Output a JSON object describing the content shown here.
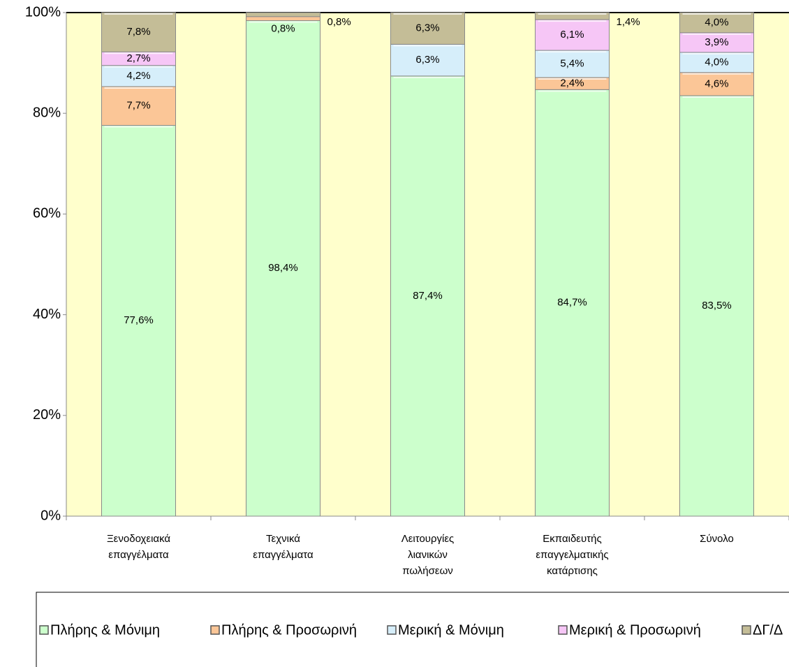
{
  "chart_data": {
    "type": "stacked_bar",
    "categories": [
      [
        "Ξενοδοχειακά",
        "επαγγέλματα"
      ],
      [
        "Τεχνικά",
        "επαγγέλματα"
      ],
      [
        "Λειτουργίες",
        "λιανικών",
        "πωλήσεων"
      ],
      [
        "Εκπαιδευτής",
        "επαγγελματικής",
        "κατάρτισης"
      ],
      [
        "Σύνολο"
      ]
    ],
    "series": [
      {
        "name": "Πλήρης & Μόνιμη",
        "color": "#ccffcc",
        "values": [
          77.6,
          98.4,
          87.4,
          84.7,
          83.5
        ],
        "value_labels": [
          "77,6%",
          "98,4%",
          "87,4%",
          "84,7%",
          "83,5%"
        ]
      },
      {
        "name": "Πλήρης & Προσωρινή",
        "color": "#fbc697",
        "values": [
          7.7,
          0.8,
          null,
          2.4,
          4.6
        ],
        "value_labels": [
          "7,7%",
          "0,8%",
          null,
          "2,4%",
          "4,6%"
        ]
      },
      {
        "name": "Μερική & Μόνιμη",
        "color": "#d6eefa",
        "values": [
          4.2,
          null,
          6.3,
          5.4,
          4.0
        ],
        "value_labels": [
          "4,2%",
          null,
          "6,3%",
          "5,4%",
          "4,0%"
        ]
      },
      {
        "name": "Μερική & Προσωρινή",
        "color": "#f6c6f6",
        "values": [
          2.7,
          null,
          null,
          6.1,
          3.9
        ],
        "value_labels": [
          "2,7%",
          null,
          null,
          "6,1%",
          "3,9%"
        ]
      },
      {
        "name": "ΔΓ/Δ",
        "color": "#c4bd97",
        "values": [
          7.8,
          0.8,
          6.3,
          1.4,
          4.0
        ],
        "value_labels": [
          "7,8%",
          "0,8%",
          "6,3%",
          "1,4%",
          "4,0%"
        ]
      }
    ],
    "ylim": [
      0,
      100
    ],
    "yticks": [
      {
        "value": 0,
        "label": "0%"
      },
      {
        "value": 20,
        "label": "20%"
      },
      {
        "value": 40,
        "label": "40%"
      },
      {
        "value": 60,
        "label": "60%"
      },
      {
        "value": 80,
        "label": "80%"
      },
      {
        "value": 100,
        "label": "100%"
      }
    ],
    "legend": "bottom"
  }
}
